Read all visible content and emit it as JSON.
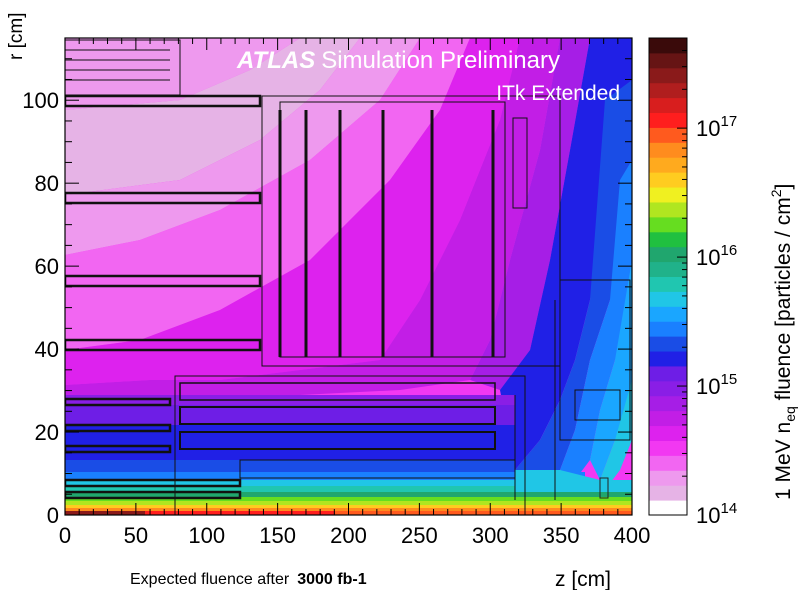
{
  "chart_data": {
    "type": "heatmap",
    "title": "ATLAS Simulation Preliminary",
    "title_experiment": "ATLAS",
    "title_rest": "Simulation Preliminary",
    "subtitle": "ITk Extended",
    "xlabel": "z [cm]",
    "ylabel": "r [cm]",
    "xlim": [
      0,
      400
    ],
    "ylim": [
      0,
      115
    ],
    "x_ticks": [
      0,
      50,
      100,
      150,
      200,
      250,
      300,
      350,
      400
    ],
    "y_ticks": [
      0,
      20,
      40,
      60,
      80,
      100
    ],
    "colorbar": {
      "label_prefix": "1 MeV n",
      "label_sub": "eq",
      "label_suffix": " fluence [particles / cm",
      "label_sup": "2",
      "label_end": "]",
      "scale": "log",
      "range": [
        100000000000000.0,
        5e+17
      ],
      "tick_labels": [
        {
          "base": "10",
          "exp": "14",
          "value": 100000000000000.0
        },
        {
          "base": "10",
          "exp": "15",
          "value": 1000000000000000.0
        },
        {
          "base": "10",
          "exp": "16",
          "value": 1e+16
        },
        {
          "base": "10",
          "exp": "17",
          "value": 1e+17
        }
      ],
      "colors": [
        "#ffffff",
        "#e6b3e6",
        "#ee99ee",
        "#f266f2",
        "#f238f2",
        "#dd22ee",
        "#c21ee6",
        "#a61ee6",
        "#8a1ee6",
        "#6e1ee6",
        "#2020e6",
        "#1a4de6",
        "#1a80ff",
        "#1aa6ff",
        "#20c6e6",
        "#20c6b0",
        "#20b28a",
        "#20a66e",
        "#20c040",
        "#66dd20",
        "#b0e620",
        "#f0f020",
        "#ffcc20",
        "#ffaa1e",
        "#ff8c1e",
        "#ff5a1e",
        "#ff1e1e",
        "#d81e1e",
        "#b01e1e",
        "#8a1a1a",
        "#661414",
        "#3a0a0a"
      ]
    },
    "fluence_log10_samples": [
      {
        "z": 25,
        "r": 110,
        "log10_fluence": 14.2
      },
      {
        "z": 25,
        "r": 90,
        "log10_fluence": 14.3
      },
      {
        "z": 25,
        "r": 60,
        "log10_fluence": 14.45
      },
      {
        "z": 25,
        "r": 35,
        "log10_fluence": 14.6
      },
      {
        "z": 25,
        "r": 20,
        "log10_fluence": 15.0
      },
      {
        "z": 25,
        "r": 8,
        "log10_fluence": 15.7
      },
      {
        "z": 25,
        "r": 1,
        "log10_fluence": 17.5
      },
      {
        "z": 200,
        "r": 80,
        "log10_fluence": 14.5
      },
      {
        "z": 200,
        "r": 30,
        "log10_fluence": 14.8
      },
      {
        "z": 200,
        "r": 10,
        "log10_fluence": 15.3
      },
      {
        "z": 330,
        "r": 100,
        "log10_fluence": 14.9
      },
      {
        "z": 330,
        "r": 40,
        "log10_fluence": 15.2
      },
      {
        "z": 390,
        "r": 80,
        "log10_fluence": 15.4
      },
      {
        "z": 390,
        "r": 40,
        "log10_fluence": 15.6
      }
    ],
    "note": "Expected fluence after",
    "note_bold": "3000 fb-1"
  }
}
